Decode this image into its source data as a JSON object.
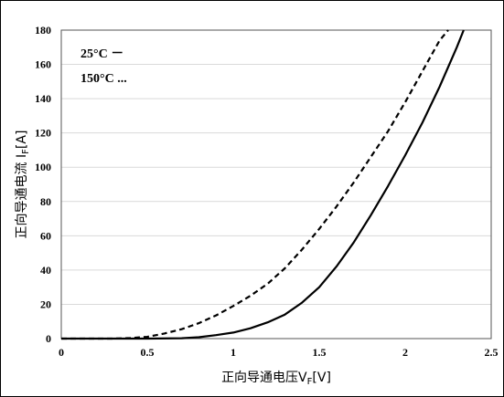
{
  "chart_data": {
    "type": "line",
    "xlabel_main": "正向导通电压V",
    "xlabel_sub": "F",
    "xlabel_unit": "[V]",
    "ylabel_main": "正向导通电流 I",
    "ylabel_sub": "F",
    "ylabel_unit": "[A]",
    "xlim": [
      0,
      2.5
    ],
    "ylim": [
      0,
      180
    ],
    "x_ticks": [
      "0",
      "0.5",
      "1",
      "1.5",
      "2",
      "2.5"
    ],
    "y_ticks": [
      "0",
      "20",
      "40",
      "60",
      "80",
      "100",
      "120",
      "140",
      "160",
      "180"
    ],
    "grid": "horizontal",
    "legend": [
      {
        "label": "25°C －",
        "style": "solid"
      },
      {
        "label": "150°C ...",
        "style": "dashed"
      }
    ],
    "series": [
      {
        "name": "25°C",
        "style": "solid",
        "color": "#000000",
        "x": [
          0,
          0.5,
          0.7,
          0.8,
          0.9,
          1.0,
          1.1,
          1.2,
          1.3,
          1.4,
          1.5,
          1.6,
          1.7,
          1.8,
          1.9,
          2.0,
          2.1,
          2.2,
          2.3,
          2.34
        ],
        "y": [
          0,
          0,
          0.2,
          0.8,
          2,
          3.5,
          6,
          9.5,
          14,
          21,
          30,
          42,
          56,
          72,
          89,
          107,
          126,
          147,
          170,
          180
        ]
      },
      {
        "name": "150°C",
        "style": "dashed",
        "color": "#000000",
        "x": [
          0,
          0.3,
          0.4,
          0.5,
          0.6,
          0.7,
          0.8,
          0.9,
          1.0,
          1.1,
          1.2,
          1.3,
          1.4,
          1.5,
          1.6,
          1.7,
          1.8,
          1.9,
          2.0,
          2.1,
          2.2,
          2.25
        ],
        "y": [
          0,
          0,
          0.3,
          1,
          3,
          5.5,
          9,
          13.5,
          19,
          25,
          32,
          41,
          52,
          64,
          77,
          91,
          106,
          121,
          138,
          156,
          174,
          180
        ]
      }
    ]
  }
}
